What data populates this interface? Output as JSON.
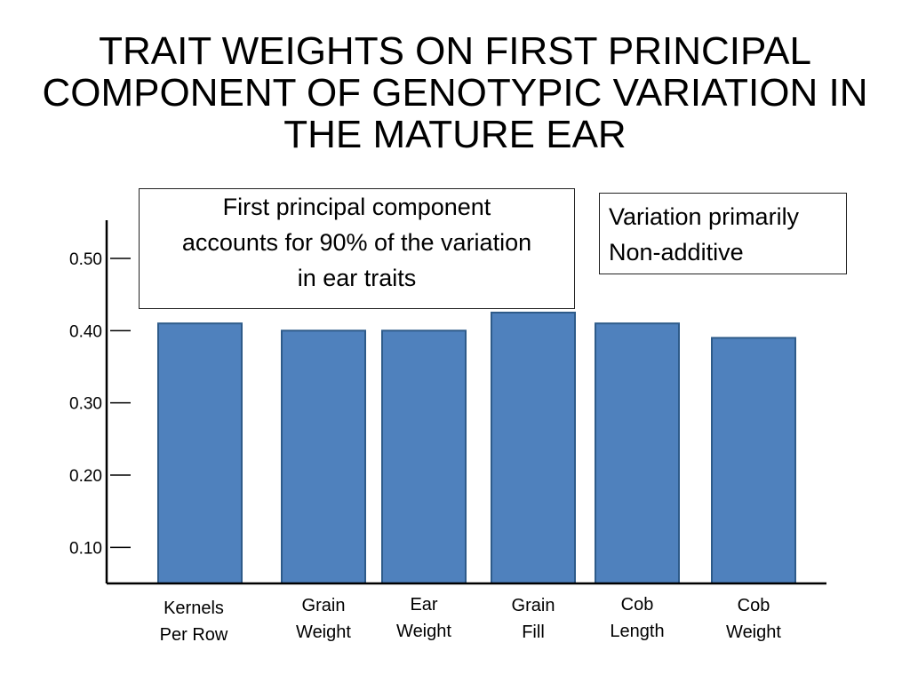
{
  "title_lines": [
    "TRAIT WEIGHTS ON FIRST PRINCIPAL",
    "COMPONENT OF GENOTYPIC VARIATION IN",
    "THE MATURE EAR"
  ],
  "annotations": {
    "box1_lines": [
      "First principal component",
      "accounts for 90% of the variation",
      "in ear traits"
    ],
    "box2_lines": [
      "Variation primarily",
      "Non-additive"
    ]
  },
  "chart_data": {
    "type": "bar",
    "categories": [
      [
        "Kernels",
        "Per Row"
      ],
      [
        "Grain",
        "Weight"
      ],
      [
        "Ear",
        "Weight"
      ],
      [
        "Grain",
        "Fill"
      ],
      [
        "Cob",
        "Length"
      ],
      [
        "Cob",
        "Weight"
      ]
    ],
    "values": [
      0.41,
      0.4,
      0.4,
      0.425,
      0.41,
      0.39
    ],
    "yticks": [
      "0.10",
      "0.20",
      "0.30",
      "0.40",
      "0.50"
    ],
    "ylim": [
      0.05,
      0.55
    ],
    "bar_color": "#4f81bd",
    "bar_edge_color": "#2e5b8a",
    "grid": false
  }
}
